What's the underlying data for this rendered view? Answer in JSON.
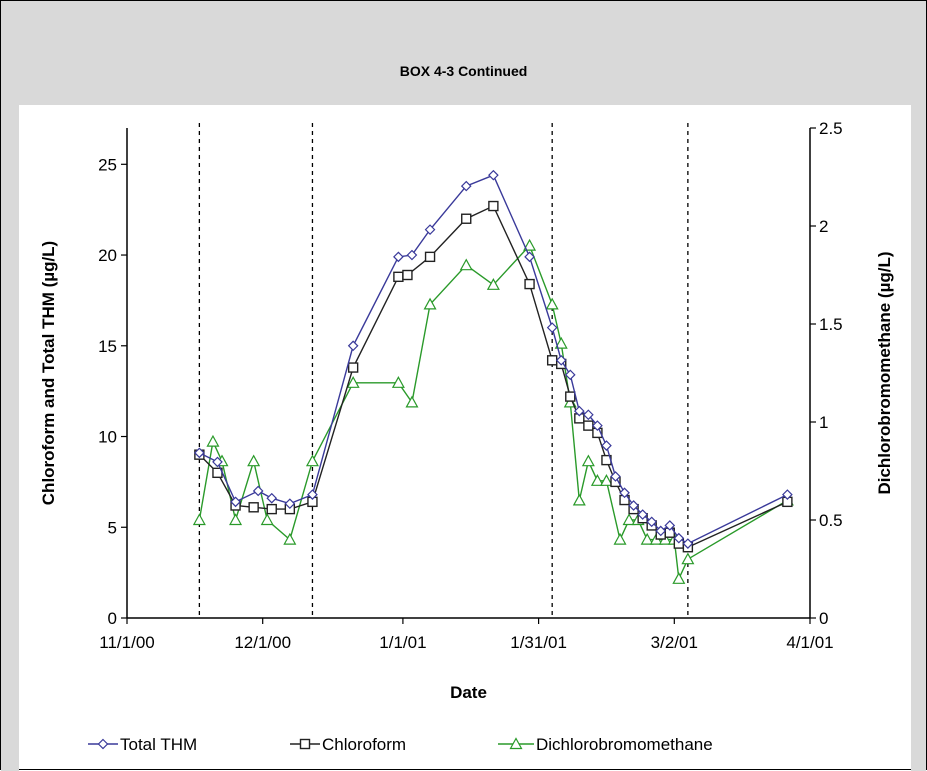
{
  "header": {
    "title": "BOX 4-3 Continued"
  },
  "colors": {
    "thm": "#3a3a9a",
    "chloroform": "#222222",
    "dcbm": "#2a9a2a",
    "banner": "#d9d9d9"
  },
  "chart_data": {
    "type": "line",
    "title": "",
    "xlabel": "Date",
    "ylabel": "Chloroform and Total THM (µg/L)",
    "y2label": "Dichlorobromomethane (µg/L)",
    "xlim": [
      "2000-11-01",
      "2001-04-01"
    ],
    "ylim": [
      0,
      27
    ],
    "y2lim": [
      0,
      2.5
    ],
    "x_ticks": [
      "11/1/00",
      "12/1/00",
      "1/1/01",
      "1/31/01",
      "3/2/01",
      "4/1/01"
    ],
    "y_ticks": [
      0,
      5,
      10,
      15,
      20,
      25
    ],
    "y2_ticks": [
      0,
      0.5,
      1,
      1.5,
      2,
      2.5
    ],
    "vertical_dashed_lines": [
      "2000-11-17",
      "2000-12-12",
      "2001-02-03",
      "2001-03-05"
    ],
    "legend_position": "bottom",
    "series": [
      {
        "name": "Total THM",
        "axis": "left",
        "marker": "diamond",
        "color": "#3a3a9a",
        "points": [
          [
            "2000-11-17",
            9.1
          ],
          [
            "2000-11-21",
            8.6
          ],
          [
            "2000-11-25",
            6.4
          ],
          [
            "2000-11-30",
            7.0
          ],
          [
            "2000-12-03",
            6.6
          ],
          [
            "2000-12-07",
            6.3
          ],
          [
            "2000-12-12",
            6.8
          ],
          [
            "2000-12-21",
            15.0
          ],
          [
            "2000-12-31",
            19.9
          ],
          [
            "2001-01-03",
            20.0
          ],
          [
            "2001-01-07",
            21.4
          ],
          [
            "2001-01-15",
            23.8
          ],
          [
            "2001-01-21",
            24.4
          ],
          [
            "2001-01-29",
            19.9
          ],
          [
            "2001-02-03",
            16.0
          ],
          [
            "2001-02-05",
            14.2
          ],
          [
            "2001-02-07",
            13.4
          ],
          [
            "2001-02-09",
            11.4
          ],
          [
            "2001-02-11",
            11.2
          ],
          [
            "2001-02-13",
            10.6
          ],
          [
            "2001-02-15",
            9.5
          ],
          [
            "2001-02-17",
            7.8
          ],
          [
            "2001-02-19",
            6.9
          ],
          [
            "2001-02-21",
            6.2
          ],
          [
            "2001-02-23",
            5.7
          ],
          [
            "2001-02-25",
            5.3
          ],
          [
            "2001-02-27",
            4.8
          ],
          [
            "2001-03-01",
            5.1
          ],
          [
            "2001-03-03",
            4.4
          ],
          [
            "2001-03-05",
            4.1
          ],
          [
            "2001-03-27",
            6.8
          ]
        ]
      },
      {
        "name": "Chloroform",
        "axis": "left",
        "marker": "square",
        "color": "#222222",
        "points": [
          [
            "2000-11-17",
            9.0
          ],
          [
            "2000-11-21",
            8.0
          ],
          [
            "2000-11-25",
            6.2
          ],
          [
            "2000-11-29",
            6.1
          ],
          [
            "2000-12-03",
            6.0
          ],
          [
            "2000-12-07",
            6.0
          ],
          [
            "2000-12-12",
            6.4
          ],
          [
            "2000-12-21",
            13.8
          ],
          [
            "2000-12-31",
            18.8
          ],
          [
            "2001-01-02",
            18.9
          ],
          [
            "2001-01-07",
            19.9
          ],
          [
            "2001-01-15",
            22.0
          ],
          [
            "2001-01-21",
            22.7
          ],
          [
            "2001-01-29",
            18.4
          ],
          [
            "2001-02-03",
            14.2
          ],
          [
            "2001-02-05",
            14.0
          ],
          [
            "2001-02-07",
            12.2
          ],
          [
            "2001-02-09",
            11.0
          ],
          [
            "2001-02-11",
            10.6
          ],
          [
            "2001-02-13",
            10.2
          ],
          [
            "2001-02-15",
            8.7
          ],
          [
            "2001-02-17",
            7.5
          ],
          [
            "2001-02-19",
            6.5
          ],
          [
            "2001-02-21",
            6.0
          ],
          [
            "2001-02-23",
            5.5
          ],
          [
            "2001-02-25",
            5.1
          ],
          [
            "2001-02-27",
            4.6
          ],
          [
            "2001-03-01",
            4.7
          ],
          [
            "2001-03-03",
            4.1
          ],
          [
            "2001-03-05",
            3.9
          ],
          [
            "2001-03-27",
            6.4
          ]
        ]
      },
      {
        "name": "Dichlorobromomethane",
        "axis": "right",
        "marker": "triangle",
        "color": "#2a9a2a",
        "points": [
          [
            "2000-11-17",
            0.5
          ],
          [
            "2000-11-20",
            0.9
          ],
          [
            "2000-11-22",
            0.8
          ],
          [
            "2000-11-25",
            0.5
          ],
          [
            "2000-11-29",
            0.8
          ],
          [
            "2000-12-02",
            0.5
          ],
          [
            "2000-12-07",
            0.4
          ],
          [
            "2000-12-12",
            0.8
          ],
          [
            "2000-12-21",
            1.2
          ],
          [
            "2000-12-31",
            1.2
          ],
          [
            "2001-01-03",
            1.1
          ],
          [
            "2001-01-07",
            1.6
          ],
          [
            "2001-01-15",
            1.8
          ],
          [
            "2001-01-21",
            1.7
          ],
          [
            "2001-01-29",
            1.9
          ],
          [
            "2001-02-03",
            1.6
          ],
          [
            "2001-02-05",
            1.4
          ],
          [
            "2001-02-07",
            1.1
          ],
          [
            "2001-02-09",
            0.6
          ],
          [
            "2001-02-11",
            0.8
          ],
          [
            "2001-02-13",
            0.7
          ],
          [
            "2001-02-15",
            0.7
          ],
          [
            "2001-02-18",
            0.4
          ],
          [
            "2001-02-20",
            0.5
          ],
          [
            "2001-02-22",
            0.5
          ],
          [
            "2001-02-24",
            0.4
          ],
          [
            "2001-02-26",
            0.4
          ],
          [
            "2001-02-28",
            0.4
          ],
          [
            "2001-03-02",
            0.4
          ],
          [
            "2001-03-03",
            0.2
          ],
          [
            "2001-03-05",
            0.3
          ],
          [
            "2001-03-27",
            0.6
          ]
        ]
      }
    ]
  }
}
